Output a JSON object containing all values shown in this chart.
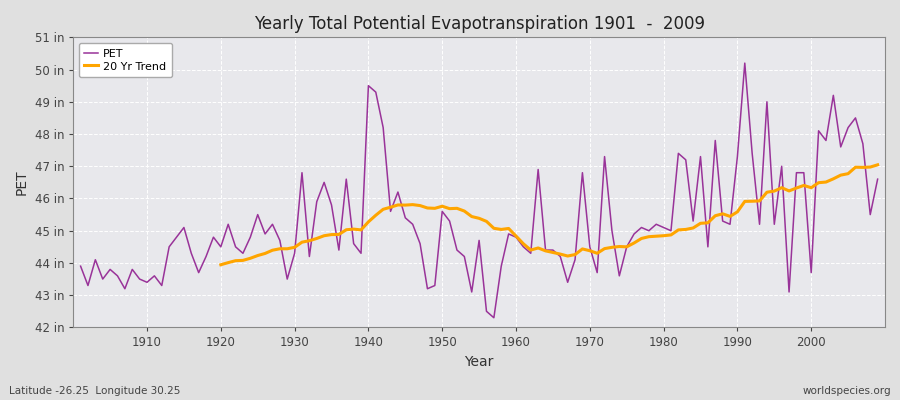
{
  "title": "Yearly Total Potential Evapotranspiration 1901  -  2009",
  "xlabel": "Year",
  "ylabel": "PET",
  "bottom_left": "Latitude -26.25  Longitude 30.25",
  "watermark": "worldspecies.org",
  "pet_color": "#993399",
  "trend_color": "#FFA500",
  "fig_bg_color": "#E0E0E0",
  "plot_bg_color": "#E8E8EC",
  "ylim": [
    42,
    51
  ],
  "yticks": [
    42,
    43,
    44,
    45,
    46,
    47,
    48,
    49,
    50,
    51
  ],
  "ytick_labels": [
    "42 in",
    "43 in",
    "44 in",
    "45 in",
    "46 in",
    "47 in",
    "48 in",
    "49 in",
    "50 in",
    "51 in"
  ],
  "years": [
    1901,
    1902,
    1903,
    1904,
    1905,
    1906,
    1907,
    1908,
    1909,
    1910,
    1911,
    1912,
    1913,
    1914,
    1915,
    1916,
    1917,
    1918,
    1919,
    1920,
    1921,
    1922,
    1923,
    1924,
    1925,
    1926,
    1927,
    1928,
    1929,
    1930,
    1931,
    1932,
    1933,
    1934,
    1935,
    1936,
    1937,
    1938,
    1939,
    1940,
    1941,
    1942,
    1943,
    1944,
    1945,
    1946,
    1947,
    1948,
    1949,
    1950,
    1951,
    1952,
    1953,
    1954,
    1955,
    1956,
    1957,
    1958,
    1959,
    1960,
    1961,
    1962,
    1963,
    1964,
    1965,
    1966,
    1967,
    1968,
    1969,
    1970,
    1971,
    1972,
    1973,
    1974,
    1975,
    1976,
    1977,
    1978,
    1979,
    1980,
    1981,
    1982,
    1983,
    1984,
    1985,
    1986,
    1987,
    1988,
    1989,
    1990,
    1991,
    1992,
    1993,
    1994,
    1995,
    1996,
    1997,
    1998,
    1999,
    2000,
    2001,
    2002,
    2003,
    2004,
    2005,
    2006,
    2007,
    2008,
    2009
  ],
  "pet_values": [
    43.9,
    43.3,
    44.1,
    43.5,
    43.8,
    43.6,
    43.2,
    43.8,
    43.5,
    43.4,
    43.6,
    43.3,
    44.5,
    44.8,
    45.1,
    44.3,
    43.7,
    44.2,
    44.8,
    44.5,
    45.2,
    44.5,
    44.3,
    44.8,
    45.5,
    44.9,
    45.2,
    44.7,
    43.5,
    44.3,
    46.8,
    44.2,
    45.9,
    46.5,
    45.8,
    44.4,
    46.6,
    44.6,
    44.3,
    49.5,
    49.3,
    48.2,
    45.6,
    46.2,
    45.4,
    45.2,
    44.6,
    43.2,
    43.3,
    45.6,
    45.3,
    44.4,
    44.2,
    43.1,
    44.7,
    42.5,
    42.3,
    43.9,
    44.9,
    44.8,
    44.5,
    44.3,
    46.9,
    44.4,
    44.4,
    44.2,
    43.4,
    44.1,
    46.8,
    44.5,
    43.7,
    47.3,
    45.0,
    43.6,
    44.5,
    44.9,
    45.1,
    45.0,
    45.2,
    45.1,
    45.0,
    47.4,
    47.2,
    45.3,
    47.3,
    44.5,
    47.8,
    45.3,
    45.2,
    47.3,
    50.2,
    47.4,
    45.2,
    49.0,
    45.2,
    47.0,
    43.1,
    46.8,
    46.8,
    43.7,
    48.1,
    47.8,
    49.2,
    47.6,
    48.2,
    48.5,
    47.7,
    45.5,
    46.6
  ]
}
